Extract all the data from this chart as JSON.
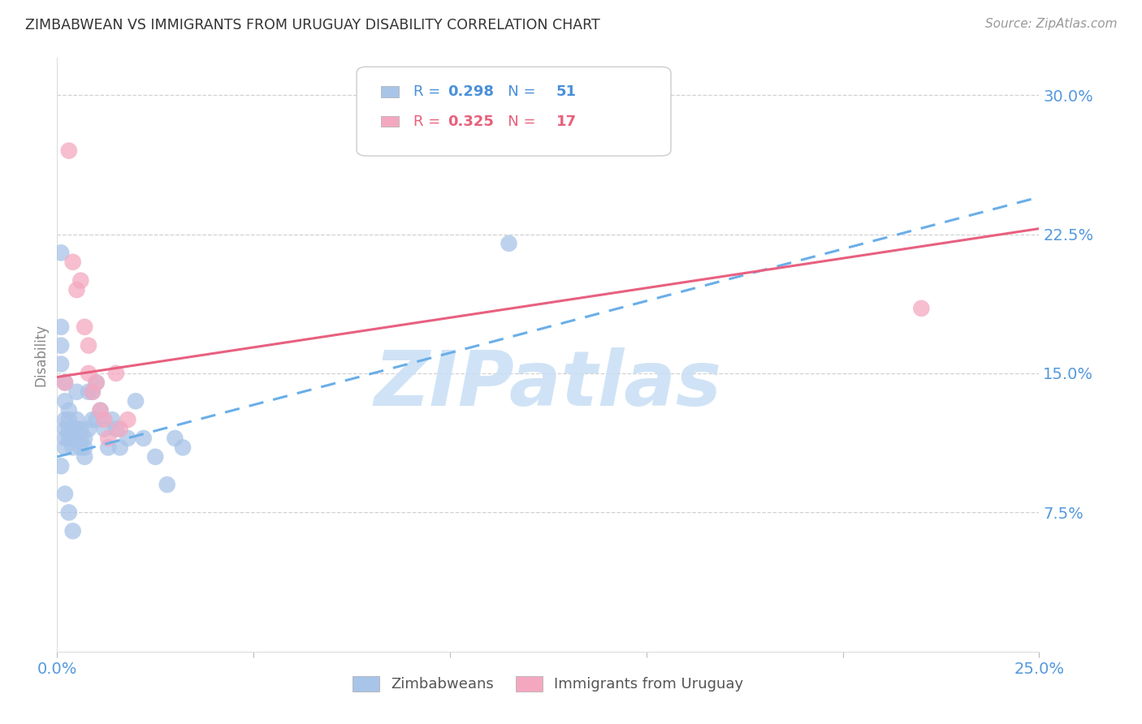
{
  "title": "ZIMBABWEAN VS IMMIGRANTS FROM URUGUAY DISABILITY CORRELATION CHART",
  "source": "Source: ZipAtlas.com",
  "ylabel": "Disability",
  "xlim": [
    0.0,
    0.25
  ],
  "ylim": [
    0.0,
    0.32
  ],
  "yticks": [
    0.075,
    0.15,
    0.225,
    0.3
  ],
  "ytick_labels": [
    "7.5%",
    "15.0%",
    "22.5%",
    "30.0%"
  ],
  "xticks": [
    0.0,
    0.05,
    0.1,
    0.15,
    0.2,
    0.25
  ],
  "xtick_labels": [
    "0.0%",
    "",
    "",
    "",
    "",
    "25.0%"
  ],
  "blue_scatter_color": "#a8c4e8",
  "pink_scatter_color": "#f4a8c0",
  "blue_line_color": "#6aaee8",
  "pink_line_color": "#e86080",
  "legend_text_color": "#4a4a4a",
  "R_blue": "0.298",
  "N_blue": "51",
  "R_pink": "0.325",
  "N_pink": "17",
  "R_N_blue_color": "#4a90d9",
  "R_N_pink_color": "#e8607a",
  "watermark": "ZIPatlas",
  "watermark_color": "#c8dff5",
  "blue_trend_y_start": 0.105,
  "blue_trend_y_end": 0.245,
  "pink_trend_y_start": 0.148,
  "pink_trend_y_end": 0.228,
  "legend_label_blue": "Zimbabweans",
  "legend_label_pink": "Immigrants from Uruguay",
  "blue_scatter_x": [
    0.001,
    0.001,
    0.001,
    0.001,
    0.002,
    0.002,
    0.002,
    0.002,
    0.002,
    0.002,
    0.003,
    0.003,
    0.003,
    0.003,
    0.004,
    0.004,
    0.004,
    0.005,
    0.005,
    0.005,
    0.005,
    0.006,
    0.006,
    0.006,
    0.007,
    0.007,
    0.007,
    0.008,
    0.008,
    0.009,
    0.009,
    0.01,
    0.01,
    0.011,
    0.012,
    0.013,
    0.014,
    0.015,
    0.016,
    0.018,
    0.02,
    0.022,
    0.025,
    0.028,
    0.03,
    0.032,
    0.115,
    0.001,
    0.002,
    0.003,
    0.004
  ],
  "blue_scatter_y": [
    0.215,
    0.175,
    0.165,
    0.155,
    0.145,
    0.135,
    0.125,
    0.12,
    0.115,
    0.11,
    0.13,
    0.125,
    0.12,
    0.115,
    0.12,
    0.115,
    0.11,
    0.14,
    0.125,
    0.12,
    0.115,
    0.12,
    0.115,
    0.11,
    0.115,
    0.11,
    0.105,
    0.14,
    0.12,
    0.14,
    0.125,
    0.145,
    0.125,
    0.13,
    0.12,
    0.11,
    0.125,
    0.12,
    0.11,
    0.115,
    0.135,
    0.115,
    0.105,
    0.09,
    0.115,
    0.11,
    0.22,
    0.1,
    0.085,
    0.075,
    0.065
  ],
  "pink_scatter_x": [
    0.003,
    0.004,
    0.005,
    0.006,
    0.007,
    0.008,
    0.008,
    0.009,
    0.01,
    0.011,
    0.012,
    0.013,
    0.015,
    0.016,
    0.018,
    0.22,
    0.002
  ],
  "pink_scatter_y": [
    0.27,
    0.21,
    0.195,
    0.2,
    0.175,
    0.165,
    0.15,
    0.14,
    0.145,
    0.13,
    0.125,
    0.115,
    0.15,
    0.12,
    0.125,
    0.185,
    0.145
  ],
  "background_color": "#ffffff",
  "grid_color": "#cccccc",
  "axis_color": "#999999",
  "tick_label_color": "#5599dd"
}
